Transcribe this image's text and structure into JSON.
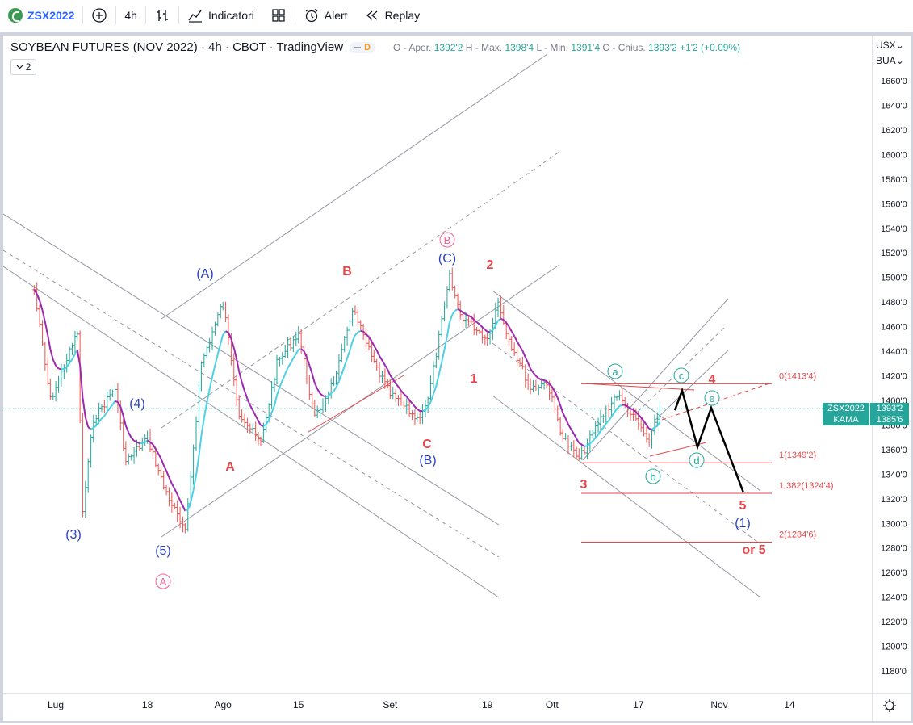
{
  "toolbar": {
    "symbol": "ZSX2022",
    "interval": "4h",
    "indicators": "Indicatori",
    "alert": "Alert",
    "replay": "Replay"
  },
  "legend": {
    "title": "SOYBEAN FUTURES (NOV 2022) · 4h · CBOT · TradingView",
    "badge": "D",
    "o_label": "O - Aper.",
    "o": "1392'2",
    "h_label": "H - Max.",
    "h": "1398'4",
    "l_label": "L - Min.",
    "l": "1391'4",
    "c_label": "C - Chius.",
    "c": "1393'2",
    "change": "+1'2 (+0.09%)",
    "collapsed_count": "2"
  },
  "axis": {
    "currency": "USX",
    "unit": "BUA"
  },
  "last_tag": {
    "symbol": "ZSX2022",
    "price": "1393'2"
  },
  "kama_tag": {
    "name": "KAMA",
    "price": "1385'6"
  },
  "chart_data": {
    "type": "candlestick",
    "price_unit": "USX/BUA",
    "ylim": [
      1170,
      1680
    ],
    "y_ticks": [
      "1660'0",
      "1640'0",
      "1620'0",
      "1600'0",
      "1580'0",
      "1560'0",
      "1540'0",
      "1520'0",
      "1500'0",
      "1480'0",
      "1460'0",
      "1440'0",
      "1420'0",
      "1400'0",
      "1380'0",
      "1360'0",
      "1340'0",
      "1320'0",
      "1300'0",
      "1280'0",
      "1260'0",
      "1240'0",
      "1220'0",
      "1200'0",
      "1180'0"
    ],
    "x_ticks": [
      "Lug",
      "18",
      "Ago",
      "15",
      "Set",
      "19",
      "Ott",
      "17",
      "Nov",
      "14"
    ],
    "price_path": [
      {
        "date": "2022-06-27",
        "close": 1490
      },
      {
        "date": "2022-06-30",
        "close": 1400
      },
      {
        "date": "2022-07-05",
        "close": 1455
      },
      {
        "date": "2022-07-06",
        "close": 1310
      },
      {
        "date": "2022-07-08",
        "close": 1385
      },
      {
        "date": "2022-07-12",
        "close": 1410
      },
      {
        "date": "2022-07-14",
        "close": 1350
      },
      {
        "date": "2022-07-18",
        "close": 1370
      },
      {
        "date": "2022-07-21",
        "close": 1330
      },
      {
        "date": "2022-07-25",
        "close": 1292
      },
      {
        "date": "2022-07-28",
        "close": 1430
      },
      {
        "date": "2022-08-01",
        "close": 1480
      },
      {
        "date": "2022-08-04",
        "close": 1390
      },
      {
        "date": "2022-08-08",
        "close": 1365
      },
      {
        "date": "2022-08-11",
        "close": 1430
      },
      {
        "date": "2022-08-15",
        "close": 1455
      },
      {
        "date": "2022-08-18",
        "close": 1385
      },
      {
        "date": "2022-08-22",
        "close": 1420
      },
      {
        "date": "2022-08-25",
        "close": 1475
      },
      {
        "date": "2022-08-29",
        "close": 1430
      },
      {
        "date": "2022-09-01",
        "close": 1405
      },
      {
        "date": "2022-09-06",
        "close": 1385
      },
      {
        "date": "2022-09-08",
        "close": 1400
      },
      {
        "date": "2022-09-12",
        "close": 1500
      },
      {
        "date": "2022-09-14",
        "close": 1470
      },
      {
        "date": "2022-09-19",
        "close": 1450
      },
      {
        "date": "2022-09-21",
        "close": 1480
      },
      {
        "date": "2022-09-23",
        "close": 1450
      },
      {
        "date": "2022-09-27",
        "close": 1410
      },
      {
        "date": "2022-09-30",
        "close": 1415
      },
      {
        "date": "2022-10-03",
        "close": 1370
      },
      {
        "date": "2022-10-06",
        "close": 1352
      },
      {
        "date": "2022-10-10",
        "close": 1385
      },
      {
        "date": "2022-10-13",
        "close": 1405
      },
      {
        "date": "2022-10-17",
        "close": 1380
      },
      {
        "date": "2022-10-19",
        "close": 1365
      },
      {
        "date": "2022-10-21",
        "close": 1393
      }
    ],
    "kama_last": 1385.75,
    "wave_labels": [
      {
        "text": "(3)",
        "color": "blue"
      },
      {
        "text": "(4)",
        "color": "blue"
      },
      {
        "text": "(5)",
        "color": "blue"
      },
      {
        "text": "A",
        "color": "pink-circle"
      },
      {
        "text": "(A)",
        "color": "blue"
      },
      {
        "text": "A",
        "color": "red"
      },
      {
        "text": "B",
        "color": "red"
      },
      {
        "text": "C",
        "color": "red"
      },
      {
        "text": "(B)",
        "color": "blue"
      },
      {
        "text": "(C)",
        "color": "blue"
      },
      {
        "text": "B",
        "color": "pink-circle"
      },
      {
        "text": "2",
        "color": "red"
      },
      {
        "text": "1",
        "color": "red"
      },
      {
        "text": "3",
        "color": "red"
      },
      {
        "text": "a",
        "color": "green-circle"
      },
      {
        "text": "b",
        "color": "green-circle"
      },
      {
        "text": "c",
        "color": "green-circle"
      },
      {
        "text": "d",
        "color": "green-circle"
      },
      {
        "text": "e",
        "color": "green-circle"
      },
      {
        "text": "4",
        "color": "red"
      },
      {
        "text": "5",
        "color": "red"
      },
      {
        "text": "(1)",
        "color": "blue"
      },
      {
        "text": "or 5",
        "color": "red"
      }
    ],
    "fib_levels": [
      {
        "label": "0(1413'4)",
        "price": 1413.5
      },
      {
        "label": "1(1349'2)",
        "price": 1349.25
      },
      {
        "label": "1.382(1324'4)",
        "price": 1324.5
      },
      {
        "label": "2(1284'6)",
        "price": 1284.75
      }
    ],
    "projection": [
      {
        "label": "start",
        "price": 1392
      },
      {
        "label": "c",
        "price": 1408
      },
      {
        "label": "d",
        "price": 1362
      },
      {
        "label": "e",
        "price": 1394
      },
      {
        "label": "5",
        "price": 1325
      }
    ]
  }
}
